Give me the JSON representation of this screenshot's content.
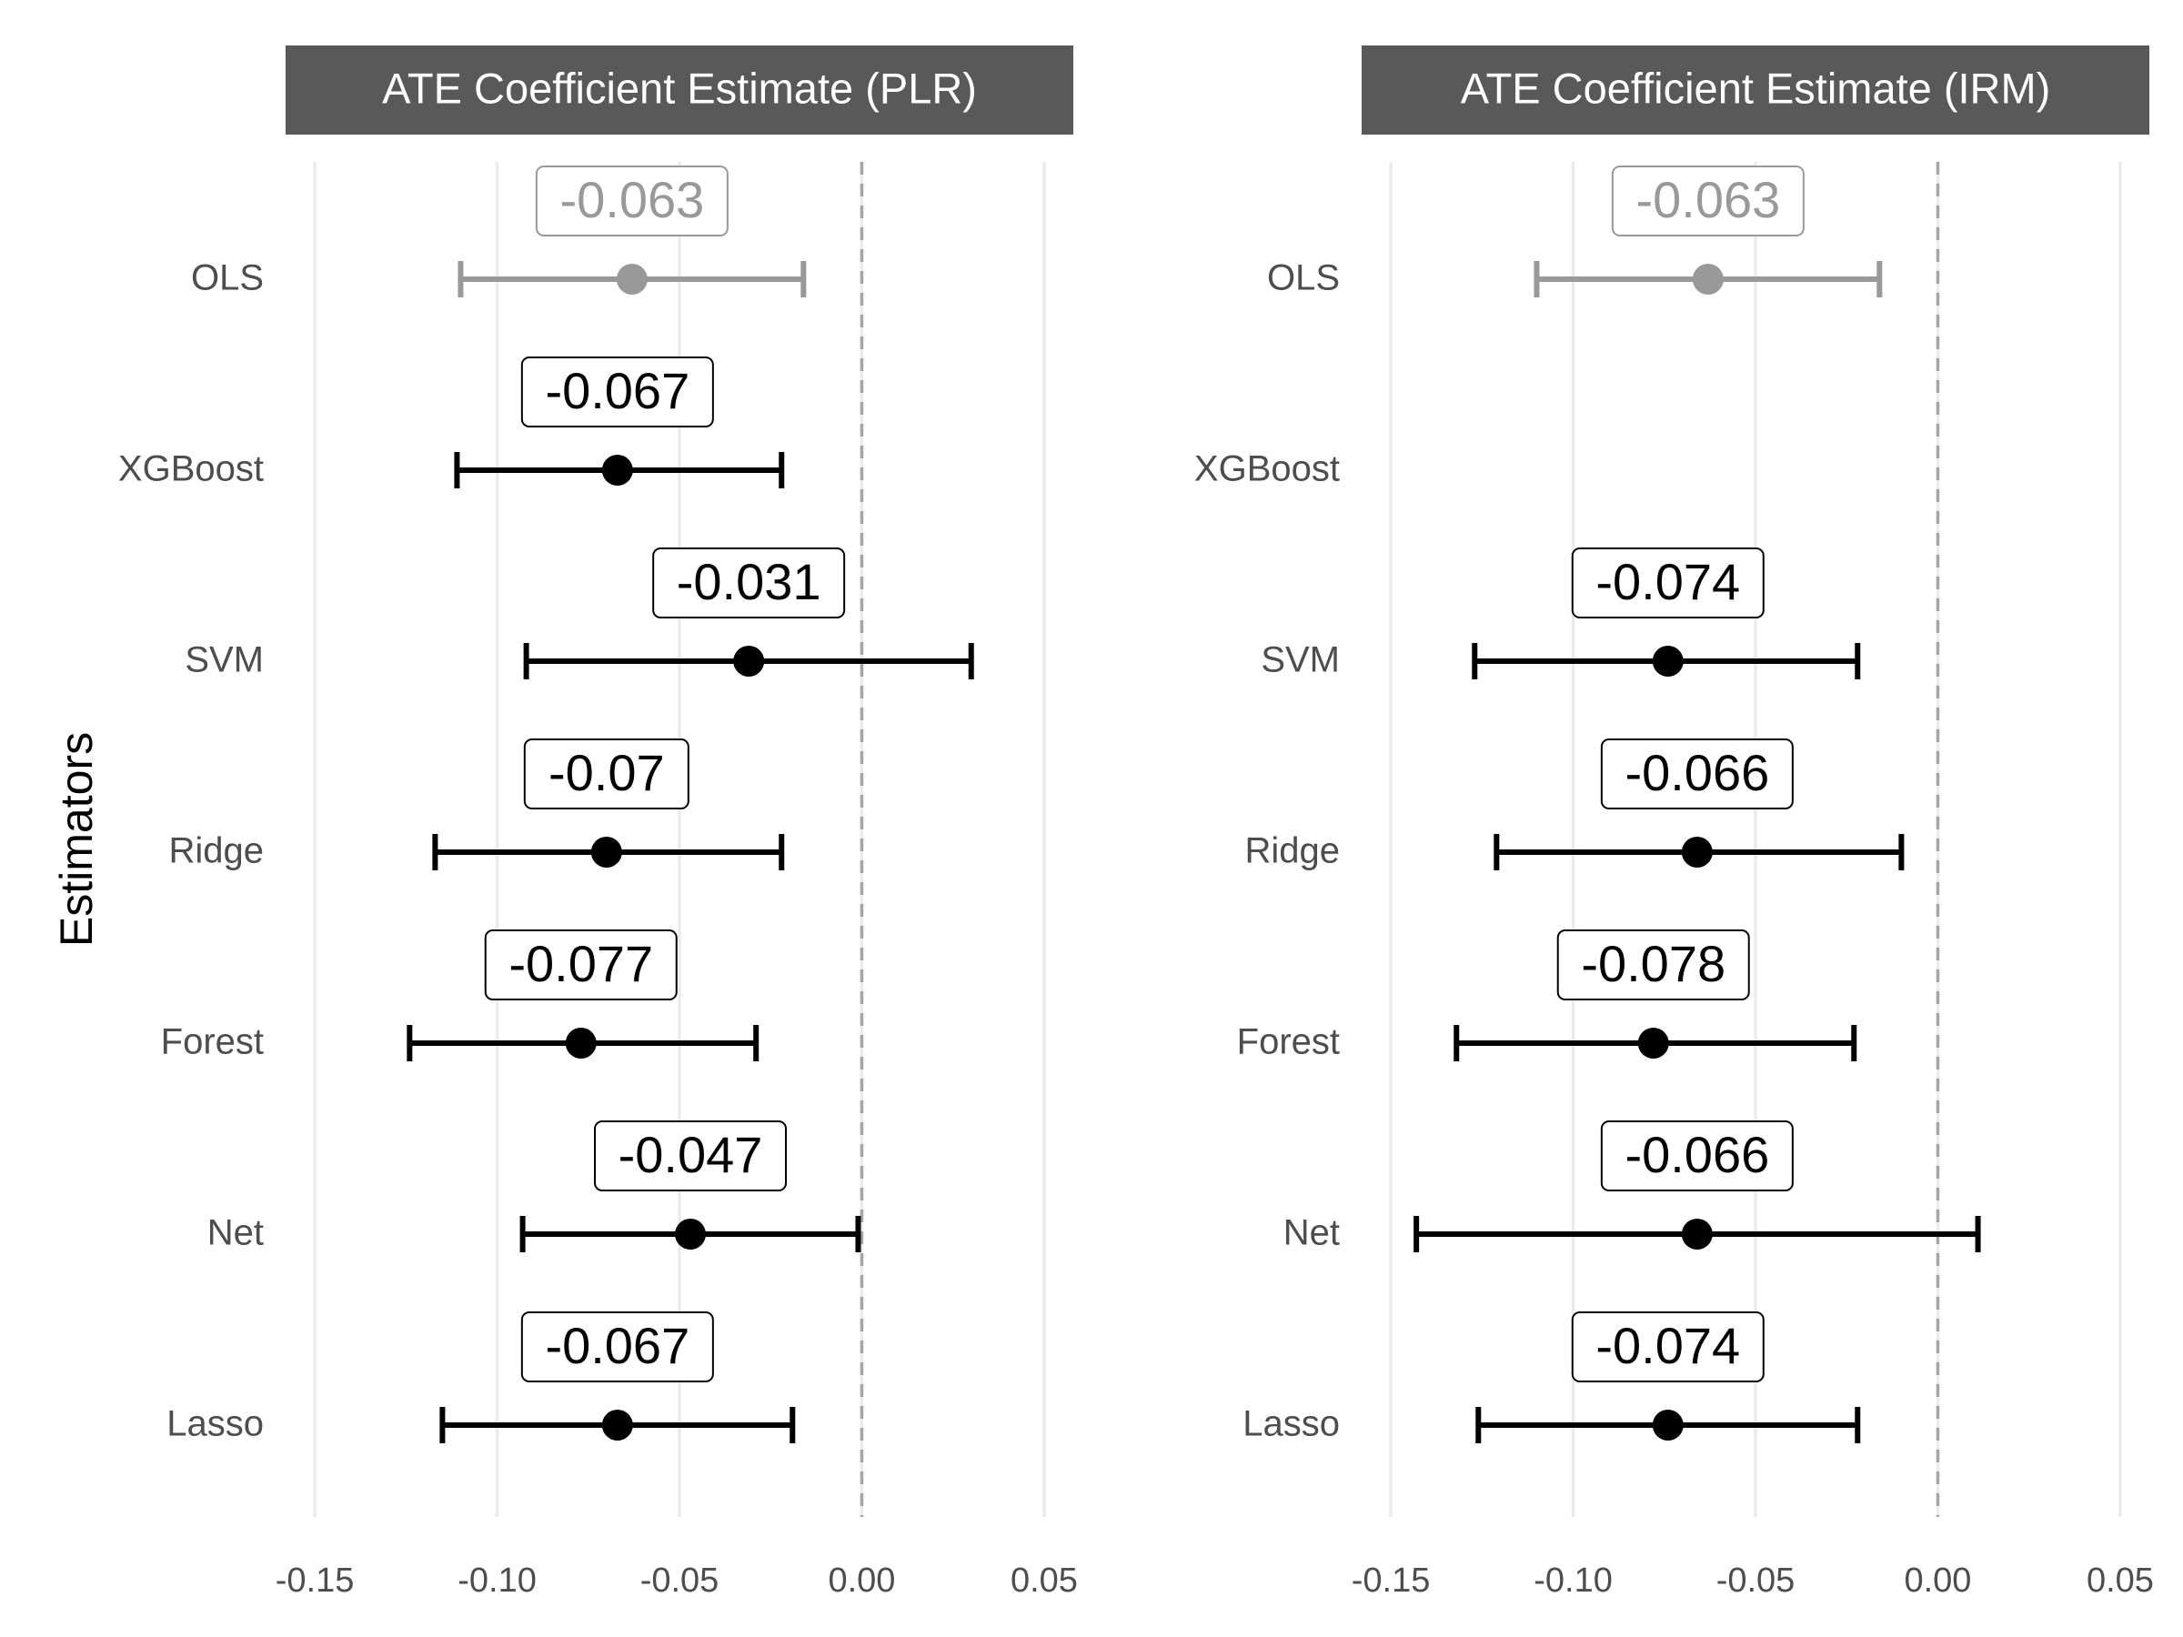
{
  "chart_data": {
    "type": "forest-plot",
    "ylabel": "Estimators",
    "categories": [
      "OLS",
      "XGBoost",
      "SVM",
      "Ridge",
      "Forest",
      "Net",
      "Lasso"
    ],
    "xlim": [
      -0.158,
      0.058
    ],
    "xticks": [
      -0.15,
      -0.1,
      -0.05,
      0.0,
      0.05
    ],
    "xtick_labels": [
      "-0.15",
      "-0.10",
      "-0.05",
      "0.00",
      "0.05"
    ],
    "reference_line": 0.0,
    "grid": "vertical-major",
    "colors": {
      "baseline": "#999999",
      "estimate": "#000000",
      "strip_background": "#595959",
      "grid": "#ebebeb",
      "reference": "#a6a6a6"
    },
    "panels": [
      {
        "title": "ATE Coefficient Estimate (PLR)",
        "points": [
          {
            "estimator": "OLS",
            "estimate": -0.063,
            "lower": -0.11,
            "upper": -0.016,
            "label": "-0.063",
            "baseline": true
          },
          {
            "estimator": "XGBoost",
            "estimate": -0.067,
            "lower": -0.111,
            "upper": -0.022,
            "label": "-0.067",
            "baseline": false
          },
          {
            "estimator": "SVM",
            "estimate": -0.031,
            "lower": -0.092,
            "upper": 0.03,
            "label": "-0.031",
            "baseline": false
          },
          {
            "estimator": "Ridge",
            "estimate": -0.07,
            "lower": -0.117,
            "upper": -0.022,
            "label": "-0.07",
            "baseline": false
          },
          {
            "estimator": "Forest",
            "estimate": -0.077,
            "lower": -0.124,
            "upper": -0.029,
            "label": "-0.077",
            "baseline": false
          },
          {
            "estimator": "Net",
            "estimate": -0.047,
            "lower": -0.093,
            "upper": -0.001,
            "label": "-0.047",
            "baseline": false
          },
          {
            "estimator": "Lasso",
            "estimate": -0.067,
            "lower": -0.115,
            "upper": -0.019,
            "label": "-0.067",
            "baseline": false
          }
        ]
      },
      {
        "title": "ATE Coefficient Estimate (IRM)",
        "points": [
          {
            "estimator": "OLS",
            "estimate": -0.063,
            "lower": -0.11,
            "upper": -0.016,
            "label": "-0.063",
            "baseline": true
          },
          {
            "estimator": "SVM",
            "estimate": -0.074,
            "lower": -0.127,
            "upper": -0.022,
            "label": "-0.074",
            "baseline": false
          },
          {
            "estimator": "Ridge",
            "estimate": -0.066,
            "lower": -0.121,
            "upper": -0.01,
            "label": "-0.066",
            "baseline": false
          },
          {
            "estimator": "Forest",
            "estimate": -0.078,
            "lower": -0.132,
            "upper": -0.023,
            "label": "-0.078",
            "baseline": false
          },
          {
            "estimator": "Net",
            "estimate": -0.066,
            "lower": -0.143,
            "upper": 0.011,
            "label": "-0.066",
            "baseline": false
          },
          {
            "estimator": "Lasso",
            "estimate": -0.074,
            "lower": -0.126,
            "upper": -0.022,
            "label": "-0.074",
            "baseline": false
          }
        ]
      }
    ]
  }
}
